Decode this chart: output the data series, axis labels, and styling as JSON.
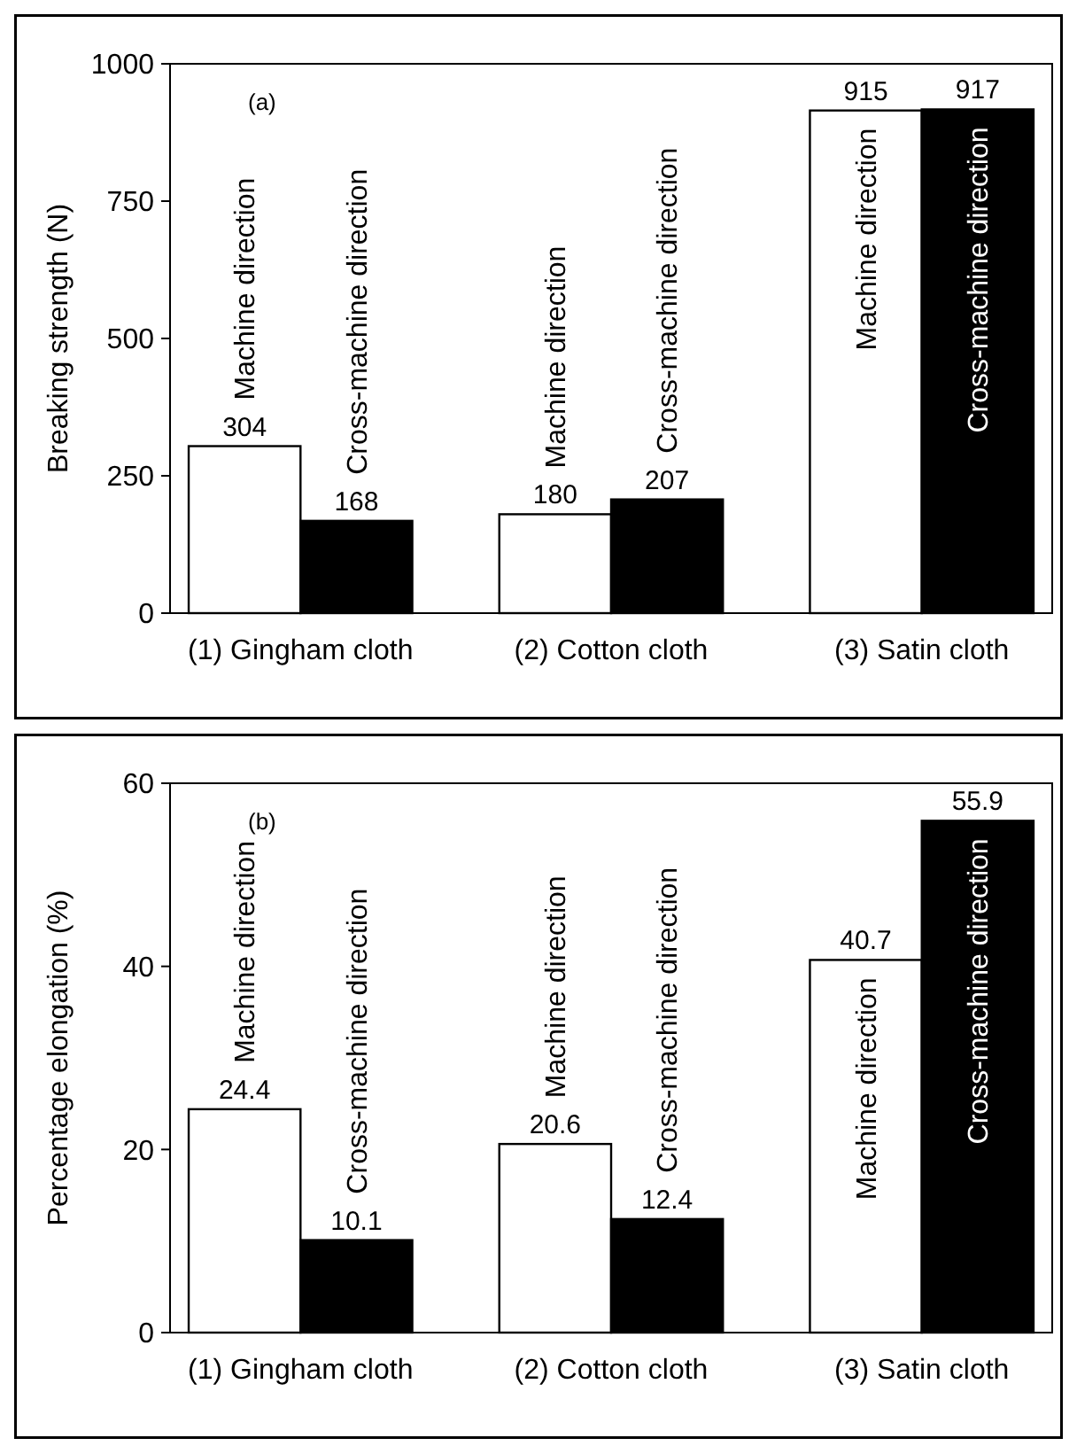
{
  "chart_data": [
    {
      "type": "bar",
      "ylabel": "Breaking strength (N)",
      "categories": [
        "(1) Gingham cloth",
        "(2) Cotton cloth",
        "(3) Satin cloth"
      ],
      "series": [
        {
          "name": "Machine direction",
          "color": "#ffffff",
          "values": [
            304,
            180,
            915
          ]
        },
        {
          "name": "Cross-machine direction",
          "color": "#000000",
          "values": [
            168,
            207,
            917
          ]
        }
      ],
      "ylim": [
        0,
        1000
      ],
      "yticks": [
        0,
        250,
        500,
        750,
        1000
      ],
      "data_labels": true,
      "annotations": [
        "(a)"
      ]
    },
    {
      "type": "bar",
      "ylabel": "Percentage elongation (%)",
      "categories": [
        "(1) Gingham cloth",
        "(2) Cotton cloth",
        "(3) Satin cloth"
      ],
      "series": [
        {
          "name": "Machine direction",
          "color": "#ffffff",
          "values": [
            24.4,
            20.6,
            40.7
          ]
        },
        {
          "name": "Cross-machine direction",
          "color": "#000000",
          "values": [
            10.1,
            12.4,
            55.9
          ]
        }
      ],
      "ylim": [
        0,
        60
      ],
      "yticks": [
        0,
        20,
        40,
        60
      ],
      "data_labels": true,
      "annotations": [
        "(b)"
      ]
    }
  ]
}
